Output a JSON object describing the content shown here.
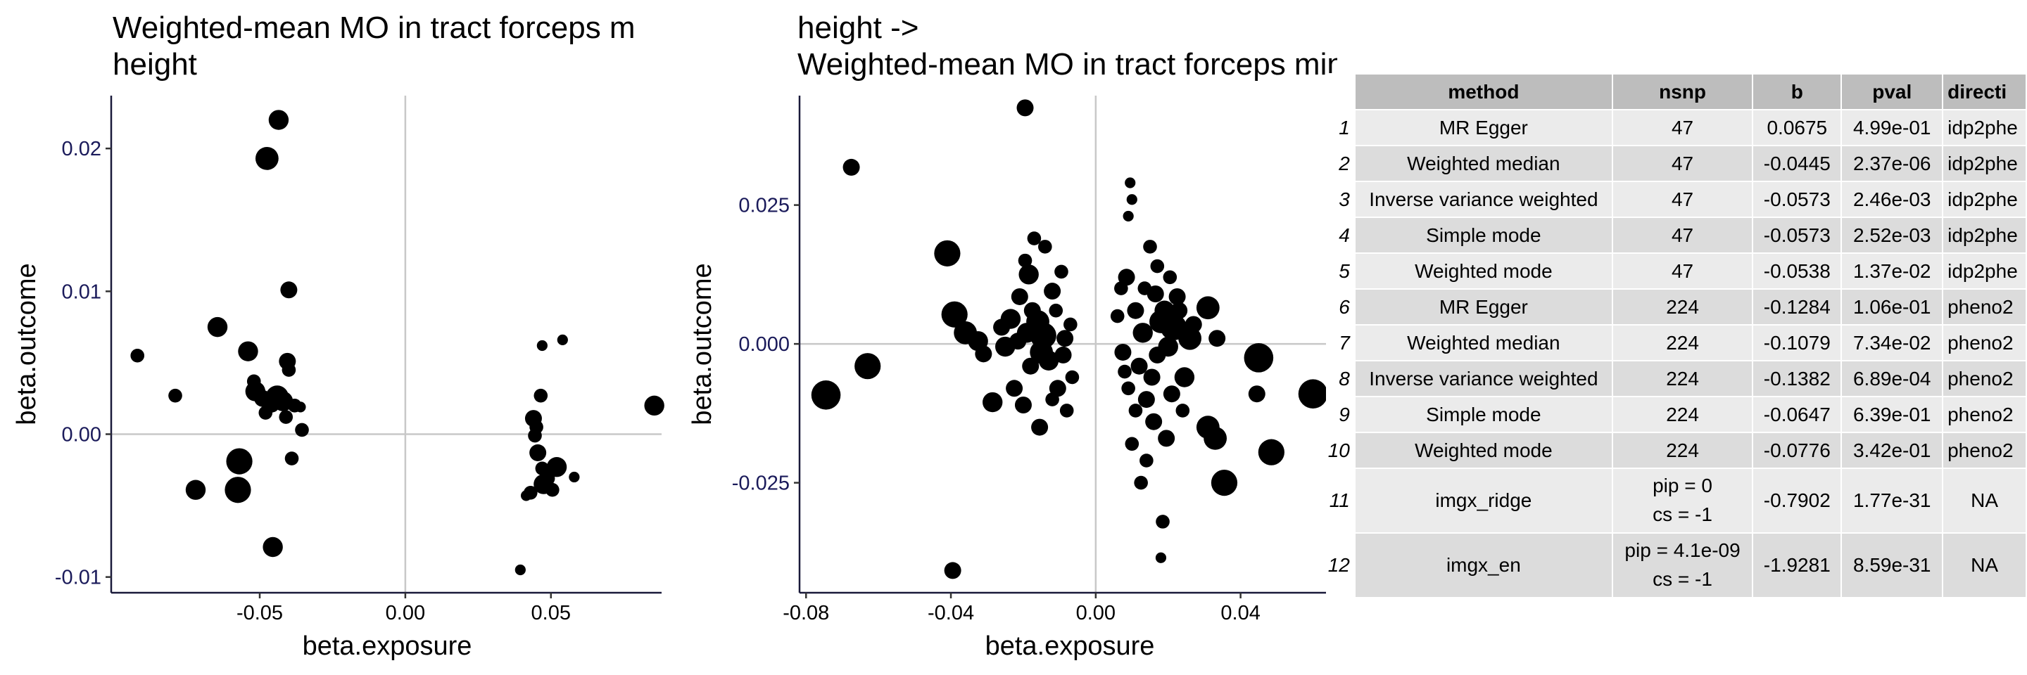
{
  "chart_data": [
    {
      "type": "scatter",
      "title": "Weighted-mean MO in tract forceps m\n height",
      "xlabel": "beta.exposure",
      "ylabel": "beta.outcome",
      "xlim": [
        -0.101,
        0.088
      ],
      "ylim": [
        -0.0111,
        0.0237
      ],
      "xticks": [
        -0.05,
        0.0,
        0.05
      ],
      "xtick_labels": [
        "-0.05",
        "0.00",
        "0.05"
      ],
      "yticks": [
        -0.01,
        0.0,
        0.01,
        0.02
      ],
      "ytick_labels": [
        "-0.01",
        "0.00",
        "0.01",
        "0.02"
      ],
      "grid": false,
      "ref_lines": {
        "x": 0,
        "y": 0
      },
      "points": [
        {
          "x": -0.0435,
          "y": 0.022,
          "s": 6
        },
        {
          "x": -0.0475,
          "y": 0.0193,
          "s": 7
        },
        {
          "x": -0.04,
          "y": 0.0101,
          "s": 5
        },
        {
          "x": -0.0645,
          "y": 0.0075,
          "s": 6
        },
        {
          "x": -0.092,
          "y": 0.0055,
          "s": 4
        },
        {
          "x": -0.054,
          "y": 0.0058,
          "s": 6
        },
        {
          "x": -0.0405,
          "y": 0.0051,
          "s": 5
        },
        {
          "x": -0.04,
          "y": 0.0045,
          "s": 4
        },
        {
          "x": -0.052,
          "y": 0.0037,
          "s": 4
        },
        {
          "x": -0.079,
          "y": 0.0027,
          "s": 4
        },
        {
          "x": -0.0515,
          "y": 0.003,
          "s": 6
        },
        {
          "x": -0.049,
          "y": 0.0025,
          "s": 5
        },
        {
          "x": -0.044,
          "y": 0.0026,
          "s": 7
        },
        {
          "x": -0.042,
          "y": 0.0023,
          "s": 6
        },
        {
          "x": -0.046,
          "y": 0.0021,
          "s": 5
        },
        {
          "x": -0.038,
          "y": 0.002,
          "s": 4
        },
        {
          "x": -0.036,
          "y": 0.0019,
          "s": 3
        },
        {
          "x": -0.048,
          "y": 0.0015,
          "s": 4
        },
        {
          "x": -0.041,
          "y": 0.0012,
          "s": 4
        },
        {
          "x": -0.0355,
          "y": 0.0003,
          "s": 4
        },
        {
          "x": -0.039,
          "y": -0.0017,
          "s": 4
        },
        {
          "x": -0.057,
          "y": -0.0019,
          "s": 8
        },
        {
          "x": -0.072,
          "y": -0.0039,
          "s": 6
        },
        {
          "x": -0.0575,
          "y": -0.0039,
          "s": 8
        },
        {
          "x": -0.0455,
          "y": -0.0079,
          "s": 6
        },
        {
          "x": 0.0395,
          "y": -0.0095,
          "s": 3
        },
        {
          "x": 0.047,
          "y": 0.0062,
          "s": 3
        },
        {
          "x": 0.054,
          "y": 0.0066,
          "s": 3
        },
        {
          "x": 0.0855,
          "y": 0.002,
          "s": 6
        },
        {
          "x": 0.0465,
          "y": 0.0027,
          "s": 4
        },
        {
          "x": 0.044,
          "y": 0.0011,
          "s": 5
        },
        {
          "x": 0.045,
          "y": 0.0005,
          "s": 4
        },
        {
          "x": 0.0445,
          "y": -0.0001,
          "s": 4
        },
        {
          "x": 0.0455,
          "y": -0.0013,
          "s": 5
        },
        {
          "x": 0.047,
          "y": -0.0024,
          "s": 4
        },
        {
          "x": 0.052,
          "y": -0.0023,
          "s": 6
        },
        {
          "x": 0.049,
          "y": -0.0031,
          "s": 4
        },
        {
          "x": 0.0475,
          "y": -0.0035,
          "s": 6
        },
        {
          "x": 0.043,
          "y": -0.0041,
          "s": 4
        },
        {
          "x": 0.0505,
          "y": -0.0039,
          "s": 4
        },
        {
          "x": 0.0415,
          "y": -0.0043,
          "s": 3
        },
        {
          "x": 0.058,
          "y": -0.003,
          "s": 3
        }
      ]
    },
    {
      "type": "scatter",
      "title": "height ->\n Weighted-mean MO in tract forceps minor",
      "xlabel": "beta.exposure",
      "ylabel": "beta.outcome",
      "xlim": [
        -0.0818,
        0.0667
      ],
      "ylim": [
        -0.0448,
        0.0447
      ],
      "xticks": [
        -0.08,
        -0.04,
        0.0,
        0.04
      ],
      "xtick_labels": [
        "-0.08",
        "-0.04",
        "0.00",
        "0.04"
      ],
      "yticks": [
        -0.025,
        0.0,
        0.025
      ],
      "ytick_labels": [
        "-0.025",
        "0.000",
        "0.025"
      ],
      "grid": false,
      "ref_lines": {
        "x": 0,
        "y": 0
      },
      "points": [
        {
          "x": -0.0195,
          "y": 0.0425,
          "s": 5
        },
        {
          "x": -0.0675,
          "y": 0.0318,
          "s": 5
        },
        {
          "x": -0.041,
          "y": 0.0163,
          "s": 8
        },
        {
          "x": -0.039,
          "y": 0.0053,
          "s": 8
        },
        {
          "x": -0.036,
          "y": 0.002,
          "s": 7
        },
        {
          "x": -0.0325,
          "y": 0.0005,
          "s": 6
        },
        {
          "x": -0.031,
          "y": -0.0018,
          "s": 5
        },
        {
          "x": -0.063,
          "y": -0.004,
          "s": 8
        },
        {
          "x": -0.0745,
          "y": -0.0092,
          "s": 9
        },
        {
          "x": -0.0285,
          "y": -0.0105,
          "s": 6
        },
        {
          "x": -0.0395,
          "y": -0.0408,
          "s": 5
        },
        {
          "x": -0.026,
          "y": 0.003,
          "s": 5
        },
        {
          "x": -0.025,
          "y": -0.0005,
          "s": 6
        },
        {
          "x": -0.0235,
          "y": 0.0045,
          "s": 6
        },
        {
          "x": -0.0215,
          "y": 0.0005,
          "s": 5
        },
        {
          "x": -0.0195,
          "y": 0.015,
          "s": 4
        },
        {
          "x": -0.0185,
          "y": 0.0125,
          "s": 6
        },
        {
          "x": -0.017,
          "y": 0.019,
          "s": 4
        },
        {
          "x": -0.016,
          "y": 0.004,
          "s": 7
        },
        {
          "x": -0.0145,
          "y": 0.0015,
          "s": 8
        },
        {
          "x": -0.013,
          "y": -0.003,
          "s": 6
        },
        {
          "x": -0.012,
          "y": 0.0095,
          "s": 5
        },
        {
          "x": -0.011,
          "y": 0.006,
          "s": 4
        },
        {
          "x": -0.0105,
          "y": -0.008,
          "s": 5
        },
        {
          "x": -0.0095,
          "y": 0.013,
          "s": 4
        },
        {
          "x": -0.0085,
          "y": 0.001,
          "s": 5
        },
        {
          "x": -0.008,
          "y": -0.012,
          "s": 4
        },
        {
          "x": -0.007,
          "y": 0.0035,
          "s": 4
        },
        {
          "x": -0.0065,
          "y": -0.006,
          "s": 4
        },
        {
          "x": -0.02,
          "y": -0.011,
          "s": 5
        },
        {
          "x": -0.018,
          "y": -0.004,
          "s": 5
        },
        {
          "x": -0.0155,
          "y": -0.015,
          "s": 5
        },
        {
          "x": -0.0225,
          "y": -0.008,
          "s": 5
        },
        {
          "x": -0.014,
          "y": 0.0175,
          "s": 4
        },
        {
          "x": -0.019,
          "y": 0.002,
          "s": 6
        },
        {
          "x": -0.012,
          "y": -0.01,
          "s": 4
        },
        {
          "x": -0.021,
          "y": 0.0085,
          "s": 5
        },
        {
          "x": -0.009,
          "y": -0.002,
          "s": 5
        },
        {
          "x": -0.0175,
          "y": 0.006,
          "s": 5
        },
        {
          "x": -0.015,
          "y": -0.0015,
          "s": 7
        },
        {
          "x": 0.009,
          "y": 0.023,
          "s": 3
        },
        {
          "x": 0.0095,
          "y": 0.029,
          "s": 3
        },
        {
          "x": 0.01,
          "y": 0.026,
          "s": 3
        },
        {
          "x": 0.0085,
          "y": 0.012,
          "s": 5
        },
        {
          "x": 0.011,
          "y": 0.006,
          "s": 5
        },
        {
          "x": 0.013,
          "y": 0.002,
          "s": 6
        },
        {
          "x": 0.015,
          "y": 0.0175,
          "s": 4
        },
        {
          "x": 0.0165,
          "y": 0.009,
          "s": 5
        },
        {
          "x": 0.018,
          "y": 0.004,
          "s": 7
        },
        {
          "x": 0.02,
          "y": -0.0005,
          "s": 6
        },
        {
          "x": 0.0215,
          "y": 0.003,
          "s": 8
        },
        {
          "x": 0.023,
          "y": 0.006,
          "s": 5
        },
        {
          "x": 0.0245,
          "y": -0.006,
          "s": 6
        },
        {
          "x": 0.026,
          "y": 0.001,
          "s": 7
        },
        {
          "x": 0.012,
          "y": -0.004,
          "s": 5
        },
        {
          "x": 0.014,
          "y": -0.01,
          "s": 5
        },
        {
          "x": 0.016,
          "y": -0.014,
          "s": 5
        },
        {
          "x": 0.009,
          "y": -0.008,
          "s": 4
        },
        {
          "x": 0.0075,
          "y": -0.0015,
          "s": 5
        },
        {
          "x": 0.01,
          "y": -0.018,
          "s": 4
        },
        {
          "x": 0.0185,
          "y": -0.032,
          "s": 4
        },
        {
          "x": 0.018,
          "y": -0.0385,
          "s": 3
        },
        {
          "x": 0.0125,
          "y": -0.025,
          "s": 4
        },
        {
          "x": 0.014,
          "y": -0.021,
          "s": 4
        },
        {
          "x": 0.0195,
          "y": -0.017,
          "s": 5
        },
        {
          "x": 0.031,
          "y": 0.0065,
          "s": 7
        },
        {
          "x": 0.0335,
          "y": 0.001,
          "s": 5
        },
        {
          "x": 0.031,
          "y": -0.015,
          "s": 7
        },
        {
          "x": 0.033,
          "y": -0.017,
          "s": 7
        },
        {
          "x": 0.0355,
          "y": -0.025,
          "s": 8
        },
        {
          "x": 0.0445,
          "y": -0.009,
          "s": 5
        },
        {
          "x": 0.0485,
          "y": -0.0195,
          "s": 8
        },
        {
          "x": 0.045,
          "y": -0.0025,
          "s": 9
        },
        {
          "x": 0.06,
          "y": -0.009,
          "s": 9
        },
        {
          "x": 0.006,
          "y": 0.005,
          "s": 4
        },
        {
          "x": 0.007,
          "y": 0.01,
          "s": 4
        },
        {
          "x": 0.017,
          "y": 0.014,
          "s": 4
        },
        {
          "x": 0.0205,
          "y": 0.012,
          "s": 4
        },
        {
          "x": 0.0225,
          "y": 0.0085,
          "s": 5
        },
        {
          "x": 0.027,
          "y": 0.0035,
          "s": 5
        },
        {
          "x": 0.024,
          "y": -0.012,
          "s": 4
        },
        {
          "x": 0.021,
          "y": -0.009,
          "s": 5
        },
        {
          "x": 0.0155,
          "y": -0.006,
          "s": 5
        },
        {
          "x": 0.0135,
          "y": 0.01,
          "s": 4
        },
        {
          "x": 0.011,
          "y": -0.012,
          "s": 4
        },
        {
          "x": 0.008,
          "y": -0.005,
          "s": 4
        },
        {
          "x": 0.019,
          "y": 0.006,
          "s": 6
        },
        {
          "x": 0.017,
          "y": -0.002,
          "s": 5
        }
      ]
    }
  ],
  "table": {
    "headers": [
      "method",
      "nsnp",
      "b",
      "pval",
      "directi"
    ],
    "rows": [
      {
        "n": "1",
        "method": "MR Egger",
        "nsnp1": "47",
        "nsnp2": "",
        "b": "0.0675",
        "pval": "4.99e-01",
        "dir": "idp2phe"
      },
      {
        "n": "2",
        "method": "Weighted median",
        "nsnp1": "47",
        "nsnp2": "",
        "b": "-0.0445",
        "pval": "2.37e-06",
        "dir": "idp2phe"
      },
      {
        "n": "3",
        "method": "Inverse variance weighted",
        "nsnp1": "47",
        "nsnp2": "",
        "b": "-0.0573",
        "pval": "2.46e-03",
        "dir": "idp2phe"
      },
      {
        "n": "4",
        "method": "Simple mode",
        "nsnp1": "47",
        "nsnp2": "",
        "b": "-0.0573",
        "pval": "2.52e-03",
        "dir": "idp2phe"
      },
      {
        "n": "5",
        "method": "Weighted mode",
        "nsnp1": "47",
        "nsnp2": "",
        "b": "-0.0538",
        "pval": "1.37e-02",
        "dir": "idp2phe"
      },
      {
        "n": "6",
        "method": "MR Egger",
        "nsnp1": "224",
        "nsnp2": "",
        "b": "-0.1284",
        "pval": "1.06e-01",
        "dir": "pheno2"
      },
      {
        "n": "7",
        "method": "Weighted median",
        "nsnp1": "224",
        "nsnp2": "",
        "b": "-0.1079",
        "pval": "7.34e-02",
        "dir": "pheno2"
      },
      {
        "n": "8",
        "method": "Inverse variance weighted",
        "nsnp1": "224",
        "nsnp2": "",
        "b": "-0.1382",
        "pval": "6.89e-04",
        "dir": "pheno2"
      },
      {
        "n": "9",
        "method": "Simple mode",
        "nsnp1": "224",
        "nsnp2": "",
        "b": "-0.0647",
        "pval": "6.39e-01",
        "dir": "pheno2"
      },
      {
        "n": "10",
        "method": "Weighted mode",
        "nsnp1": "224",
        "nsnp2": "",
        "b": "-0.0776",
        "pval": "3.42e-01",
        "dir": "pheno2"
      },
      {
        "n": "11",
        "method": "imgx_ridge",
        "nsnp1": "pip = 0",
        "nsnp2": "cs = -1",
        "b": "-0.7902",
        "pval": "1.77e-31",
        "dir": "NA"
      },
      {
        "n": "12",
        "method": "imgx_en",
        "nsnp1": "pip = 4.1e-09",
        "nsnp2": "cs = -1",
        "b": "-1.9281",
        "pval": "8.59e-31",
        "dir": "NA"
      }
    ]
  }
}
